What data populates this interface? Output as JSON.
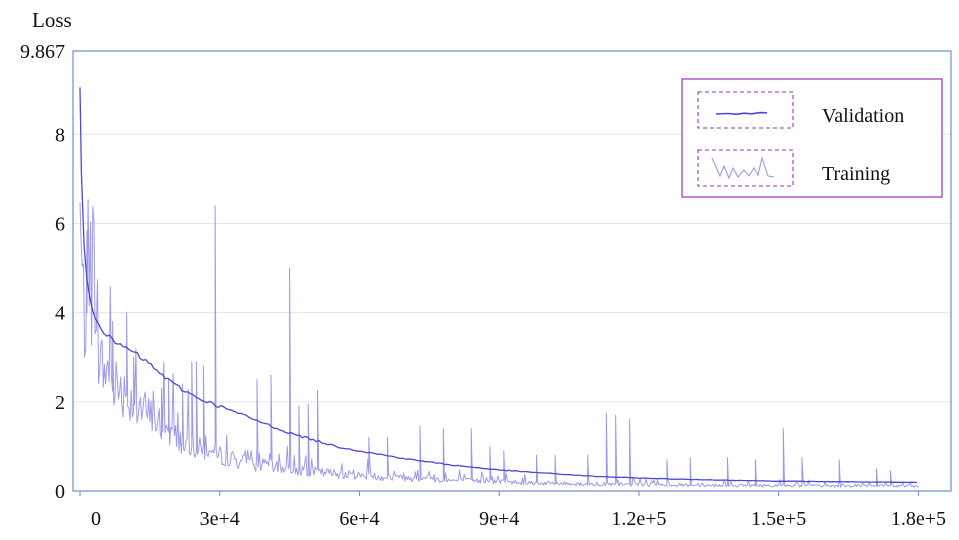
{
  "chart_data": {
    "type": "line",
    "ylabel": "Loss",
    "xlabel": "",
    "xlim": [
      -1500,
      187000
    ],
    "ylim": [
      0,
      9.867
    ],
    "x_ticks": [
      0,
      30000,
      60000,
      90000,
      120000,
      150000,
      180000
    ],
    "x_tick_labels": [
      "0",
      "3e+4",
      "6e+4",
      "9e+4",
      "1.2e+5",
      "1.5e+5",
      "1.8e+5"
    ],
    "y_ticks": [
      0,
      2,
      4,
      6,
      8,
      9.867
    ],
    "y_tick_labels": [
      "0",
      "2",
      "4",
      "6",
      "8",
      "9.867"
    ],
    "grid": true,
    "legend_position": "top-right",
    "colors": {
      "validation": "#4a4ad8",
      "training": "#9b9bea",
      "frame": "#6a8fd0",
      "legend_border": "#9933bb",
      "grid": "#e6e6e6"
    },
    "series": [
      {
        "name": "Validation",
        "x": [
          0,
          300,
          1000,
          2000,
          3000,
          5000,
          7000,
          10000,
          13000,
          16000,
          20000,
          25000,
          30000,
          35000,
          40000,
          45000,
          50000,
          55000,
          60000,
          70000,
          80000,
          90000,
          100000,
          110000,
          120000,
          130000,
          140000,
          150000,
          160000,
          170000,
          180000
        ],
        "y": [
          9.05,
          7.0,
          5.2,
          4.4,
          4.0,
          3.6,
          3.35,
          3.2,
          3.0,
          2.75,
          2.4,
          2.1,
          1.9,
          1.7,
          1.5,
          1.3,
          1.15,
          1.0,
          0.9,
          0.72,
          0.58,
          0.47,
          0.4,
          0.33,
          0.29,
          0.26,
          0.24,
          0.22,
          0.21,
          0.2,
          0.19
        ]
      },
      {
        "name": "Training",
        "x": [
          0,
          500,
          1000,
          2000,
          3000,
          4000,
          5000,
          6000,
          7000,
          8000,
          9000,
          10000,
          11000,
          12000,
          14000,
          16000,
          18000,
          20000,
          22000,
          24000,
          26000,
          28000,
          30000,
          32000,
          34000,
          36000,
          38000,
          40000,
          45000,
          50000,
          55000,
          60000,
          70000,
          80000,
          90000,
          100000,
          110000,
          120000,
          130000,
          140000,
          150000,
          160000,
          170000,
          180000
        ],
        "y": [
          6.0,
          4.5,
          3.8,
          3.3,
          3.1,
          2.9,
          2.7,
          2.55,
          2.45,
          2.35,
          2.25,
          2.1,
          2.0,
          1.9,
          1.75,
          1.55,
          1.4,
          1.25,
          1.1,
          1.0,
          0.92,
          0.85,
          0.78,
          0.72,
          0.67,
          0.62,
          0.58,
          0.55,
          0.48,
          0.42,
          0.38,
          0.34,
          0.28,
          0.23,
          0.2,
          0.17,
          0.15,
          0.14,
          0.13,
          0.12,
          0.12,
          0.11,
          0.11,
          0.1
        ],
        "spikes": [
          [
            1500,
            4.0
          ],
          [
            7000,
            3.8
          ],
          [
            10000,
            4.0
          ],
          [
            11500,
            3.0
          ],
          [
            17500,
            2.3
          ],
          [
            19000,
            2.5
          ],
          [
            22000,
            2.4
          ],
          [
            24000,
            2.9
          ],
          [
            25000,
            2.9
          ],
          [
            26500,
            2.8
          ],
          [
            29000,
            6.4
          ],
          [
            38000,
            2.5
          ],
          [
            41000,
            2.6
          ],
          [
            45000,
            5.0
          ],
          [
            47000,
            1.9
          ],
          [
            49000,
            1.95
          ],
          [
            51000,
            2.25
          ],
          [
            62000,
            1.2
          ],
          [
            66000,
            1.2
          ],
          [
            73000,
            1.45
          ],
          [
            78000,
            1.4
          ],
          [
            84000,
            1.4
          ],
          [
            88000,
            1.0
          ],
          [
            91000,
            0.9
          ],
          [
            98000,
            0.8
          ],
          [
            102000,
            0.8
          ],
          [
            109000,
            0.8
          ],
          [
            113000,
            1.75
          ],
          [
            115000,
            1.7
          ],
          [
            118000,
            1.6
          ],
          [
            126000,
            0.7
          ],
          [
            131000,
            0.75
          ],
          [
            139000,
            0.75
          ],
          [
            145000,
            0.7
          ],
          [
            151000,
            1.4
          ],
          [
            155000,
            0.75
          ],
          [
            163000,
            0.7
          ],
          [
            171000,
            0.5
          ],
          [
            174000,
            0.45
          ]
        ]
      }
    ]
  }
}
